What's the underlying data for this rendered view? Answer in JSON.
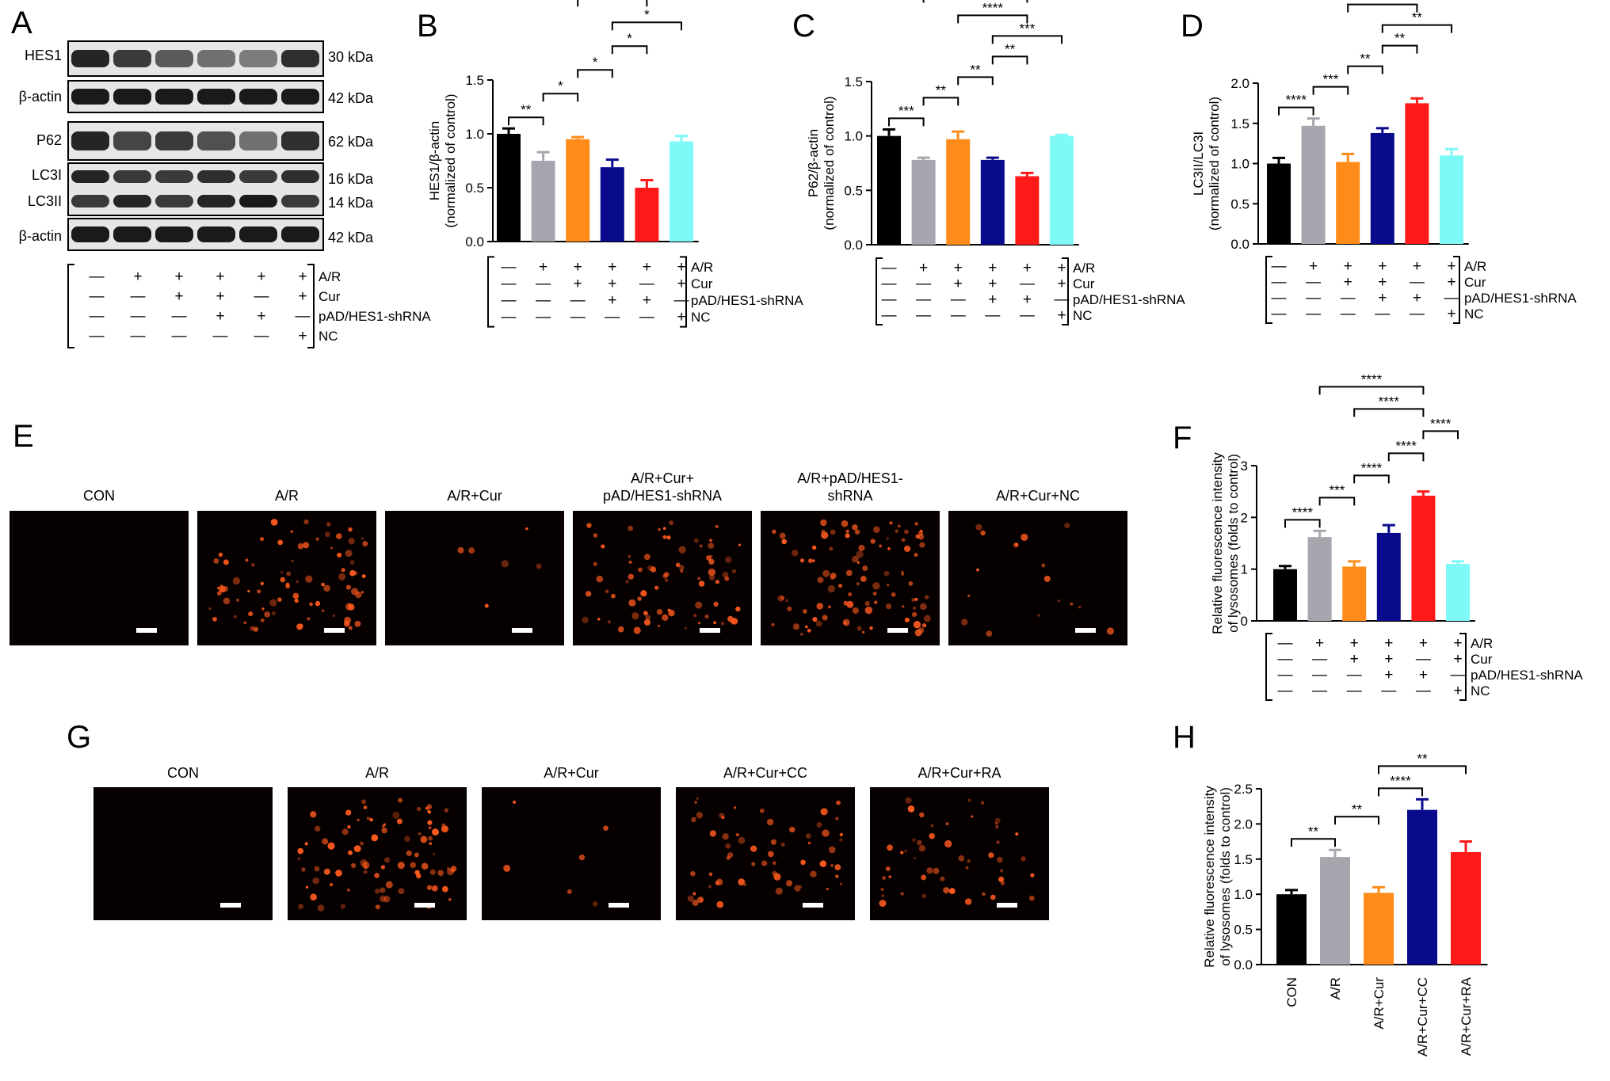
{
  "colors": {
    "black": "#000000",
    "gray": "#a6a6ae",
    "orange": "#ff8c1a",
    "navy": "#0a0a8c",
    "red": "#ff1a1a",
    "cyan": "#7ff8f8",
    "blot_band": "#1a1a1a",
    "micro_bg": "#060000",
    "micro_dot": "#ff5a1e"
  },
  "panels": {
    "A": {
      "letter": "A",
      "rows": [
        {
          "label": "HES1",
          "size": "30 kDa",
          "intensity": [
            0.9,
            0.8,
            0.65,
            0.55,
            0.5,
            0.85
          ]
        },
        {
          "label": "β-actin",
          "size": "42 kDa",
          "intensity": [
            0.95,
            0.95,
            0.95,
            0.95,
            0.95,
            0.95
          ]
        },
        {
          "label": "P62",
          "size": "62 kDa",
          "intensity": [
            0.9,
            0.75,
            0.8,
            0.7,
            0.55,
            0.85
          ]
        },
        {
          "label": "LC3I",
          "size": "16 kDa",
          "intensity": [
            0.9,
            0.8,
            0.8,
            0.85,
            0.8,
            0.85
          ]
        },
        {
          "label": "LC3II",
          "size": "14 kDa",
          "intensity": [
            0.8,
            0.9,
            0.8,
            0.9,
            0.95,
            0.8
          ]
        },
        {
          "label": "β-actin",
          "size": "42 kDa",
          "intensity": [
            0.95,
            0.95,
            0.95,
            0.95,
            0.95,
            0.95
          ]
        }
      ],
      "treatments": {
        "labels": [
          "A/R",
          "Cur",
          "pAD/HES1-shRNA",
          "NC"
        ],
        "matrix": [
          [
            "—",
            "+",
            "+",
            "+",
            "+",
            "+"
          ],
          [
            "—",
            "—",
            "+",
            "+",
            "—",
            "+"
          ],
          [
            "—",
            "—",
            "—",
            "+",
            "+",
            "—"
          ],
          [
            "—",
            "—",
            "—",
            "—",
            "—",
            "+"
          ]
        ]
      }
    },
    "B": {
      "letter": "B",
      "chart_data": {
        "type": "bar",
        "ylabel": "HES1/β-actin\n(normalized of control)",
        "ylabel_lines": [
          "HES1/β-actin",
          "(normalized of control)"
        ],
        "ylim": [
          0,
          1.5
        ],
        "yticks": [
          "0.0",
          "0.5",
          "1.0",
          "1.5"
        ],
        "values": [
          1.0,
          0.75,
          0.95,
          0.69,
          0.5,
          0.93
        ],
        "errors": [
          0.05,
          0.08,
          0.02,
          0.07,
          0.07,
          0.05
        ],
        "significance": [
          {
            "a": 0,
            "b": 1,
            "label": "**"
          },
          {
            "a": 1,
            "b": 2,
            "label": "*"
          },
          {
            "a": 2,
            "b": 3,
            "label": "*"
          },
          {
            "a": 3,
            "b": 4,
            "label": "*"
          },
          {
            "a": 3,
            "b": 5,
            "label": "*"
          },
          {
            "a": 2,
            "b": 4,
            "label": "*"
          },
          {
            "a": 1,
            "b": 4,
            "label": "**"
          }
        ]
      }
    },
    "C": {
      "letter": "C",
      "chart_data": {
        "type": "bar",
        "ylabel_lines": [
          "P62/β-actin",
          "(normalized of control)"
        ],
        "ylim": [
          0,
          1.5
        ],
        "yticks": [
          "0.0",
          "0.5",
          "1.0",
          "1.5"
        ],
        "values": [
          1.0,
          0.78,
          0.97,
          0.78,
          0.63,
          1.0
        ],
        "errors": [
          0.06,
          0.02,
          0.07,
          0.02,
          0.03,
          0.01
        ],
        "significance": [
          {
            "a": 0,
            "b": 1,
            "label": "***"
          },
          {
            "a": 1,
            "b": 2,
            "label": "**"
          },
          {
            "a": 2,
            "b": 3,
            "label": "**"
          },
          {
            "a": 3,
            "b": 4,
            "label": "**"
          },
          {
            "a": 3,
            "b": 5,
            "label": "***"
          },
          {
            "a": 2,
            "b": 4,
            "label": "****"
          },
          {
            "a": 1,
            "b": 4,
            "label": "**"
          }
        ]
      }
    },
    "D": {
      "letter": "D",
      "chart_data": {
        "type": "bar",
        "ylabel_lines": [
          "LC3II/LC3I",
          "(normalized of control)"
        ],
        "ylim": [
          0,
          2.0
        ],
        "yticks": [
          "0.0",
          "0.5",
          "1.0",
          "1.5",
          "2.0"
        ],
        "values": [
          1.0,
          1.47,
          1.02,
          1.38,
          1.75,
          1.1
        ],
        "errors": [
          0.07,
          0.09,
          0.1,
          0.06,
          0.06,
          0.08
        ],
        "significance": [
          {
            "a": 0,
            "b": 1,
            "label": "****"
          },
          {
            "a": 1,
            "b": 2,
            "label": "***"
          },
          {
            "a": 2,
            "b": 3,
            "label": "**"
          },
          {
            "a": 3,
            "b": 4,
            "label": "**"
          },
          {
            "a": 3,
            "b": 5,
            "label": "**"
          },
          {
            "a": 2,
            "b": 4,
            "label": "*"
          },
          {
            "a": 1,
            "b": 4,
            "label": "****"
          },
          {
            "a": 0,
            "b": 4,
            "label": "*"
          }
        ]
      }
    },
    "E": {
      "letter": "E",
      "images": [
        {
          "label_lines": [
            "CON"
          ],
          "density": 0.0
        },
        {
          "label_lines": [
            "A/R"
          ],
          "density": 0.75
        },
        {
          "label_lines": [
            "A/R+Cur"
          ],
          "density": 0.05
        },
        {
          "label_lines": [
            "A/R+Cur+",
            "pAD/HES1-shRNA"
          ],
          "density": 0.7
        },
        {
          "label_lines": [
            "A/R+pAD/HES1-",
            "shRNA"
          ],
          "density": 0.9
        },
        {
          "label_lines": [
            "A/R+Cur+NC"
          ],
          "density": 0.15
        }
      ]
    },
    "F": {
      "letter": "F",
      "chart_data": {
        "type": "bar",
        "ylabel_lines": [
          "Relative fluorescence intensity",
          "of lysosomes (folds to control)"
        ],
        "ylim": [
          0,
          3
        ],
        "yticks": [
          "0",
          "1",
          "2",
          "3"
        ],
        "values": [
          1.0,
          1.62,
          1.05,
          1.7,
          2.42,
          1.1
        ],
        "errors": [
          0.06,
          0.12,
          0.1,
          0.15,
          0.08,
          0.05
        ],
        "significance": [
          {
            "a": 0,
            "b": 1,
            "label": "****"
          },
          {
            "a": 1,
            "b": 2,
            "label": "***"
          },
          {
            "a": 2,
            "b": 3,
            "label": "****"
          },
          {
            "a": 3,
            "b": 4,
            "label": "****"
          },
          {
            "a": 2,
            "b": 4,
            "label": "****"
          },
          {
            "a": 1,
            "b": 4,
            "label": "****"
          },
          {
            "a": 4,
            "b": 5,
            "label": "****"
          }
        ]
      }
    },
    "G": {
      "letter": "G",
      "images": [
        {
          "label_lines": [
            "CON"
          ],
          "density": 0.0
        },
        {
          "label_lines": [
            "A/R"
          ],
          "density": 0.8
        },
        {
          "label_lines": [
            "A/R+Cur"
          ],
          "density": 0.05
        },
        {
          "label_lines": [
            "A/R+Cur+CC"
          ],
          "density": 0.55
        },
        {
          "label_lines": [
            "A/R+Cur+RA"
          ],
          "density": 0.45
        }
      ]
    },
    "H": {
      "letter": "H",
      "chart_data": {
        "type": "bar",
        "ylabel_lines": [
          "Relative fluorescence intensity",
          "of lysosomes (folds to control)"
        ],
        "ylim": [
          0,
          2.5
        ],
        "yticks": [
          "0.0",
          "0.5",
          "1.0",
          "1.5",
          "2.0",
          "2.5"
        ],
        "categories": [
          "CON",
          "A/R",
          "A/R+Cur",
          "A/R+Cur+CC",
          "A/R+Cur+RA"
        ],
        "values": [
          1.0,
          1.53,
          1.02,
          2.2,
          1.6
        ],
        "errors": [
          0.06,
          0.1,
          0.08,
          0.15,
          0.15
        ],
        "significance": [
          {
            "a": 0,
            "b": 1,
            "label": "**"
          },
          {
            "a": 1,
            "b": 2,
            "label": "**"
          },
          {
            "a": 2,
            "b": 3,
            "label": "****"
          },
          {
            "a": 2,
            "b": 4,
            "label": "**"
          }
        ]
      }
    }
  },
  "treatment_labels": [
    "A/R",
    "Cur",
    "pAD/HES1-shRNA",
    "NC"
  ],
  "treatment_matrix": [
    [
      "—",
      "+",
      "+",
      "+",
      "+",
      "+"
    ],
    [
      "—",
      "—",
      "+",
      "+",
      "—",
      "+"
    ],
    [
      "—",
      "—",
      "—",
      "+",
      "+",
      "—"
    ],
    [
      "—",
      "—",
      "—",
      "—",
      "—",
      "+"
    ]
  ]
}
